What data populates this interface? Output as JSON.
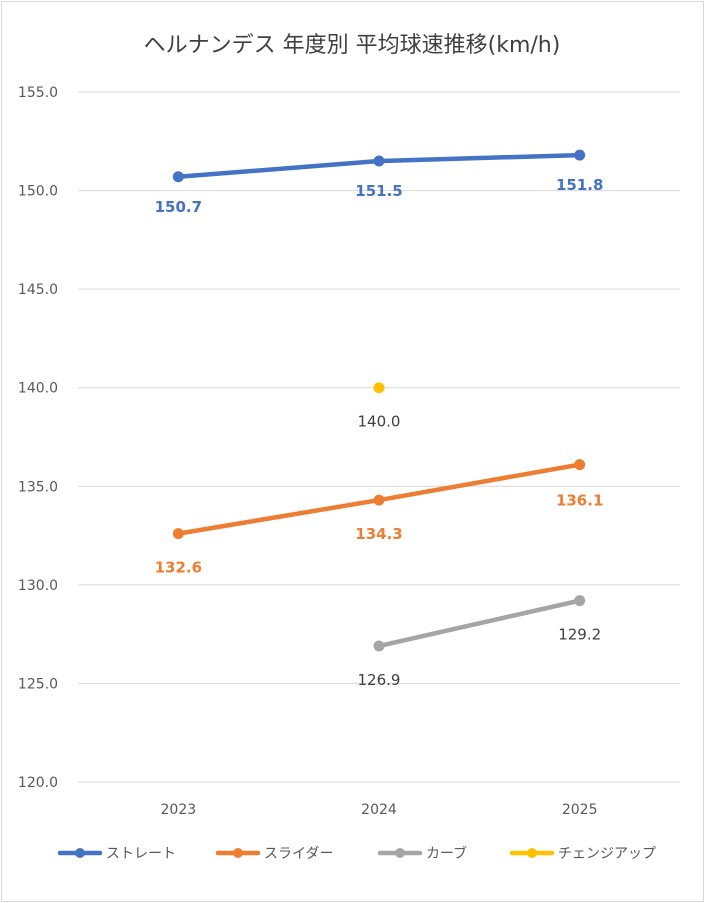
{
  "chart_data": {
    "type": "line",
    "title": "ヘルナンデス 年度別 平均球速推移(km/h)",
    "xlabel": "",
    "ylabel": "",
    "categories": [
      "2023",
      "2024",
      "2025"
    ],
    "ylim": [
      120.0,
      155.0
    ],
    "ytick_values": [
      120,
      125,
      130,
      135,
      140,
      145,
      150,
      155
    ],
    "ytick_labels": [
      "120.0",
      "125.0",
      "130.0",
      "135.0",
      "140.0",
      "145.0",
      "150.0",
      "155.0"
    ],
    "grid": "horizontal",
    "legend_position": "bottom",
    "series": [
      {
        "name": "ストレート",
        "color": "#4472c4",
        "values": [
          150.7,
          151.5,
          151.8
        ],
        "labels": [
          "150.7",
          "151.5",
          "151.8"
        ],
        "label_color": "#4472c4"
      },
      {
        "name": "スライダー",
        "color": "#ed7d31",
        "values": [
          132.6,
          134.3,
          136.1
        ],
        "labels": [
          "132.6",
          "134.3",
          "136.1"
        ],
        "label_color": "#ed7d31"
      },
      {
        "name": "カーブ",
        "color": "#a5a5a5",
        "values": [
          null,
          126.9,
          129.2
        ],
        "labels": [
          "",
          "126.9",
          "129.2"
        ],
        "label_color": "#404040"
      },
      {
        "name": "チェンジアップ",
        "color": "#ffc000",
        "values": [
          null,
          140.0,
          null
        ],
        "labels": [
          "",
          "140.0",
          ""
        ],
        "label_color": "#404040"
      }
    ]
  }
}
